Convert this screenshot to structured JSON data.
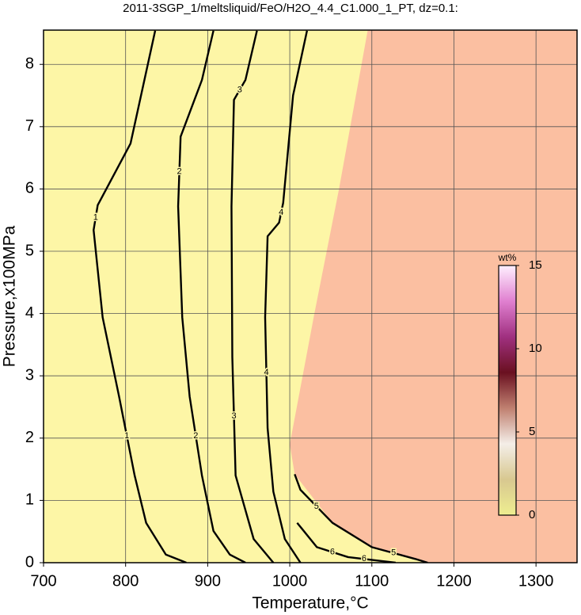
{
  "chart_data": {
    "type": "contour",
    "title": "2011-3SGP_1/meltsliquid/FeO/H2O_4.4_C1.000_1_PT, dz=0.1:",
    "xlabel": "Temperature,°C",
    "ylabel": "Pressure,x100MPa",
    "xlim": [
      700,
      1350
    ],
    "ylim": [
      0,
      8.55
    ],
    "xticks": [
      700,
      800,
      900,
      1000,
      1100,
      1200,
      1300
    ],
    "yticks": [
      0,
      1,
      2,
      3,
      4,
      5,
      6,
      7,
      8
    ],
    "grid": true,
    "background_color": "#fbbfa1",
    "field_color": "#fdf6a6",
    "line_color": "#000000",
    "field_boundary": {
      "x": [
        1095,
        1060,
        1030,
        1010,
        1000,
        1006,
        1052,
        1100,
        1153,
        1168
      ],
      "y": [
        8.55,
        6,
        4,
        2.6,
        1.9,
        1.42,
        0.64,
        0.25,
        0.06,
        0
      ]
    },
    "contours": [
      {
        "level": 1,
        "x": [
          836,
          806,
          766,
          761,
          772,
          792,
          811,
          825,
          849,
          874
        ],
        "y": [
          8.54,
          6.73,
          5.74,
          5.34,
          3.94,
          2.67,
          1.4,
          0.64,
          0.13,
          0
        ]
      },
      {
        "level": 2,
        "x": [
          907,
          893,
          867,
          864,
          869,
          878,
          893,
          907,
          927,
          946
        ],
        "y": [
          8.54,
          7.75,
          6.84,
          5.72,
          3.94,
          2.67,
          1.4,
          0.51,
          0.13,
          0
        ]
      },
      {
        "level": 3,
        "x": [
          960,
          946,
          932,
          929,
          930,
          934,
          956,
          980
        ],
        "y": [
          8.54,
          7.75,
          7.43,
          5.72,
          3.3,
          1.4,
          0.38,
          0
        ]
      },
      {
        "level": 4,
        "x": [
          1021,
          1004,
          992,
          987,
          973,
          970,
          973,
          980,
          994,
          1013
        ],
        "y": [
          8.54,
          7.5,
          5.78,
          5.46,
          5.24,
          3.94,
          2.16,
          1.14,
          0.38,
          0
        ]
      },
      {
        "level": 5,
        "x": [
          1006,
          1013,
          1052,
          1100,
          1153,
          1168
        ],
        "y": [
          1.42,
          1.17,
          0.64,
          0.25,
          0.06,
          0
        ]
      },
      {
        "level": 6,
        "x": [
          1009,
          1033,
          1071,
          1110,
          1129
        ],
        "y": [
          0.64,
          0.25,
          0.09,
          0.03,
          0
        ]
      }
    ],
    "colorbar": {
      "label": "wt%",
      "lim": [
        0,
        15
      ],
      "ticks": [
        0,
        5,
        10,
        15
      ],
      "colors": [
        "#eeee90",
        "#d8c890",
        "#f4eee8",
        "#c08070",
        "#6a1020",
        "#a03080",
        "#e080d0",
        "#fff0ff"
      ]
    }
  }
}
